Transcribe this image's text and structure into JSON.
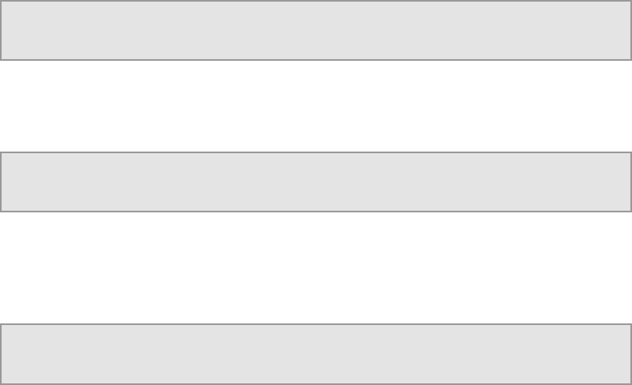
{
  "colors": {
    "bar_fill": "#e4e4e4",
    "bar_border": "#999999",
    "background": "#ffffff"
  },
  "bars": [
    {
      "label": ""
    },
    {
      "label": ""
    },
    {
      "label": ""
    }
  ]
}
